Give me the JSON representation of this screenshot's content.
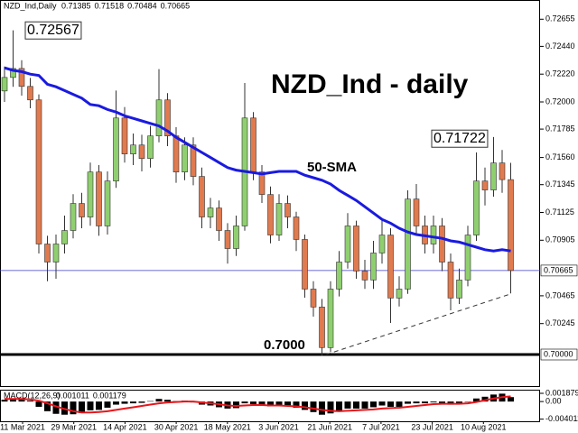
{
  "chart_data": {
    "type": "candlestick",
    "symbol": "NZD_Ind,Daily",
    "title": "NZD_Ind - daily",
    "up_color": "#8fcf6f",
    "down_color": "#e07a4f",
    "wick_color": "#333333",
    "open": [
      0.72087,
      0.72194,
      0.72265,
      0.72123,
      0.72016,
      0.70875,
      0.70732,
      0.70875,
      0.70982,
      0.71196,
      0.71089,
      0.71445,
      0.71018,
      0.71374,
      0.71873,
      0.71588,
      0.71659,
      0.71552,
      0.71731,
      0.72016,
      0.71731,
      0.71445,
      0.71659,
      0.7141,
      0.71089,
      0.7116,
      0.70982,
      0.70839,
      0.71018,
      0.71873,
      0.71445,
      0.71267,
      0.70946,
      0.71196,
      0.71089,
      0.70911,
      0.70518,
      0.70376,
      0.70055,
      0.70518,
      0.70732,
      0.71018,
      0.70661,
      0.7059,
      0.70804,
      0.70946,
      0.70447,
      0.70518,
      0.71231,
      0.71018,
      0.70875,
      0.71018,
      0.70732,
      0.70447,
      0.7059,
      0.70946,
      0.71374,
      0.71303,
      0.71517,
      0.71385
    ],
    "high": [
      0.7228,
      0.72567,
      0.7233,
      0.7219,
      0.7206,
      0.7094,
      0.7095,
      0.711,
      0.7127,
      0.7128,
      0.7152,
      0.715,
      0.7145,
      0.7209,
      0.7196,
      0.7175,
      0.7174,
      0.7181,
      0.7226,
      0.7207,
      0.718,
      0.7172,
      0.7172,
      0.7148,
      0.7124,
      0.7122,
      0.7104,
      0.711,
      0.7215,
      0.7192,
      0.715,
      0.7133,
      0.7127,
      0.7126,
      0.7113,
      0.7095,
      0.7058,
      0.7044,
      0.7058,
      0.7082,
      0.7112,
      0.7106,
      0.7075,
      0.709,
      0.7107,
      0.71,
      0.7062,
      0.713,
      0.7135,
      0.711,
      0.711,
      0.7108,
      0.708,
      0.7068,
      0.7102,
      0.716,
      0.7148,
      0.71722,
      0.7162,
      0.71518
    ],
    "low": [
      0.72,
      0.7212,
      0.7205,
      0.7195,
      0.708,
      0.7058,
      0.706,
      0.708,
      0.7092,
      0.71,
      0.7102,
      0.7094,
      0.7095,
      0.7132,
      0.7152,
      0.715,
      0.7145,
      0.7148,
      0.7168,
      0.7165,
      0.7136,
      0.7138,
      0.7134,
      0.71,
      0.71,
      0.709,
      0.7072,
      0.7078,
      0.7098,
      0.7138,
      0.712,
      0.7088,
      0.709,
      0.71,
      0.7082,
      0.7045,
      0.703,
      0.6999,
      0.7002,
      0.7046,
      0.7068,
      0.706,
      0.7052,
      0.7052,
      0.7072,
      0.7025,
      0.7038,
      0.7048,
      0.7095,
      0.708,
      0.708,
      0.7066,
      0.7035,
      0.704,
      0.7054,
      0.709,
      0.7118,
      0.7125,
      0.7128,
      0.70484
    ],
    "close": [
      0.72194,
      0.72265,
      0.72123,
      0.72016,
      0.70875,
      0.70732,
      0.70875,
      0.70982,
      0.71196,
      0.71089,
      0.71445,
      0.71018,
      0.71374,
      0.71873,
      0.71588,
      0.71659,
      0.71552,
      0.71731,
      0.72016,
      0.71731,
      0.71445,
      0.71659,
      0.7141,
      0.71089,
      0.7116,
      0.70982,
      0.70839,
      0.71018,
      0.71873,
      0.71445,
      0.71267,
      0.70946,
      0.71196,
      0.71089,
      0.70911,
      0.70518,
      0.70376,
      0.70055,
      0.70518,
      0.70732,
      0.71018,
      0.70661,
      0.7059,
      0.70804,
      0.70946,
      0.70447,
      0.70518,
      0.71231,
      0.71018,
      0.70875,
      0.71018,
      0.70732,
      0.70447,
      0.7059,
      0.70946,
      0.71374,
      0.71303,
      0.71517,
      0.71385,
      0.70665
    ],
    "sma": {
      "name": "50-SMA",
      "color": "#1a1ae0",
      "values": [
        0.7227,
        0.7225,
        0.7224,
        0.7222,
        0.7221,
        0.7214,
        0.7212,
        0.7209,
        0.7206,
        0.7203,
        0.7198,
        0.7197,
        0.7194,
        0.7192,
        0.7189,
        0.7187,
        0.7185,
        0.7183,
        0.7181,
        0.7177,
        0.7172,
        0.7168,
        0.7164,
        0.716,
        0.7156,
        0.7152,
        0.7148,
        0.7146,
        0.7145,
        0.7144,
        0.7143,
        0.7144,
        0.7145,
        0.7145,
        0.7145,
        0.7142,
        0.714,
        0.7138,
        0.7135,
        0.713,
        0.7126,
        0.7122,
        0.7117,
        0.7112,
        0.7107,
        0.7104,
        0.71,
        0.7097,
        0.7095,
        0.7094,
        0.7093,
        0.7092,
        0.709,
        0.7089,
        0.7087,
        0.7085,
        0.7083,
        0.7082,
        0.7083,
        0.7082
      ]
    },
    "support": {
      "value": 0.7,
      "label": "0.7000"
    },
    "level_line": {
      "value": 0.7,
      "label": "0.70000"
    },
    "trendline": {
      "start": 0.7,
      "end": 0.7048
    },
    "ylim": [
      0.6975,
      0.728
    ],
    "yticks": [
      0.72655,
      {
        "value": 0.7244,
        "label": "0.72440"
      },
      {
        "value": 0.7222,
        "label": "0.72220"
      },
      {
        "value": 0.72,
        "label": "0.72000"
      },
      0.71785,
      {
        "value": 0.7156,
        "label": "0.71560"
      },
      0.71345,
      0.71125,
      0.70905,
      0.70465,
      0.70245
    ],
    "x_labels": [
      "11 Mar 2021",
      "29 Mar 2021",
      "14 Apr 2021",
      "30 Apr 2021",
      "18 May 2021",
      "3 Jun 2021",
      "21 Jun 2021",
      "7 Jul 2021",
      "23 Jul 2021",
      "10 Aug 2021"
    ],
    "macd": {
      "name": "MACD(12,26,9)",
      "color": "#000000",
      "signal_color": "#e8161b",
      "histogram": [
        0.0004,
        0.0006,
        0.0005,
        0.0002,
        -0.0012,
        -0.0022,
        -0.0028,
        -0.003,
        -0.0029,
        -0.0026,
        -0.002,
        -0.0019,
        -0.0014,
        -0.0007,
        -0.0005,
        -0.0004,
        -0.0003,
        0.0001,
        0.0006,
        0.0004,
        0.0001,
        0.0002,
        -0.0002,
        -0.0007,
        -0.0009,
        -0.0013,
        -0.0016,
        -0.0015,
        -0.0004,
        -0.0006,
        -0.0008,
        -0.0011,
        -0.001,
        -0.0011,
        -0.0014,
        -0.0019,
        -0.0024,
        -0.003,
        -0.0027,
        -0.0022,
        -0.0016,
        -0.0016,
        -0.0016,
        -0.0013,
        -0.0009,
        -0.0012,
        -0.0012,
        -0.0005,
        -0.0004,
        -0.0004,
        -0.0002,
        -0.0004,
        -0.0007,
        -0.0006,
        -0.0001,
        0.0007,
        0.0011,
        0.0016,
        0.0018,
        0.001011
      ],
      "signal": [
        0.0006,
        0.0006,
        0.0006,
        0.0005,
        0.0002,
        -0.0004,
        -0.0011,
        -0.0017,
        -0.0022,
        -0.0025,
        -0.0025,
        -0.0024,
        -0.0022,
        -0.0019,
        -0.0016,
        -0.0013,
        -0.001,
        -0.0007,
        -0.0004,
        -0.0002,
        -0.0001,
        0,
        0,
        -0.0002,
        -0.0004,
        -0.0006,
        -0.0009,
        -0.001,
        -0.0009,
        -0.0008,
        -0.0008,
        -0.0009,
        -0.0009,
        -0.001,
        -0.0011,
        -0.0013,
        -0.0016,
        -0.0019,
        -0.0021,
        -0.0022,
        -0.0021,
        -0.002,
        -0.0019,
        -0.0018,
        -0.0016,
        -0.0015,
        -0.0014,
        -0.0012,
        -0.001,
        -0.0008,
        -0.0006,
        -0.0005,
        -0.0005,
        -0.0005,
        -0.0004,
        -0.0001,
        0.0003,
        0.0007,
        0.001,
        0.001179
      ],
      "ylim": [
        -0.0045,
        0.0025
      ],
      "yticks": [
        0.001879,
        {
          "value": 0,
          "label": "0.00"
        },
        -0.004011
      ]
    }
  }
}
